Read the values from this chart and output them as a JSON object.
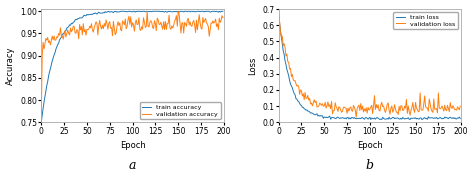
{
  "fig_width": 4.74,
  "fig_height": 1.87,
  "dpi": 100,
  "background_color": "#ffffff",
  "axes_bg": "#ffffff",
  "plot_a": {
    "ylabel": "Accuracy",
    "xlabel": "Epoch",
    "label_a": "a",
    "ylim": [
      0.75,
      1.005
    ],
    "xlim": [
      0,
      200
    ],
    "yticks": [
      0.75,
      0.8,
      0.85,
      0.9,
      0.95,
      1.0
    ],
    "xticks": [
      0,
      25,
      50,
      75,
      100,
      125,
      150,
      175,
      200
    ],
    "train_color": "#1f77b4",
    "val_color": "#ff7f0e",
    "legend_labels": [
      "train accuracy",
      "validation accuracy"
    ],
    "legend_loc": "lower right"
  },
  "plot_b": {
    "ylabel": "Loss",
    "xlabel": "Epoch",
    "label_b": "b",
    "ylim": [
      0.0,
      0.7
    ],
    "xlim": [
      0,
      200
    ],
    "yticks": [
      0.0,
      0.1,
      0.2,
      0.3,
      0.4,
      0.5,
      0.6,
      0.7
    ],
    "xticks": [
      0,
      25,
      50,
      75,
      100,
      125,
      150,
      175,
      200
    ],
    "train_color": "#1f77b4",
    "val_color": "#ff7f0e",
    "legend_labels": [
      "train loss",
      "validation loss"
    ],
    "legend_loc": "upper right"
  }
}
